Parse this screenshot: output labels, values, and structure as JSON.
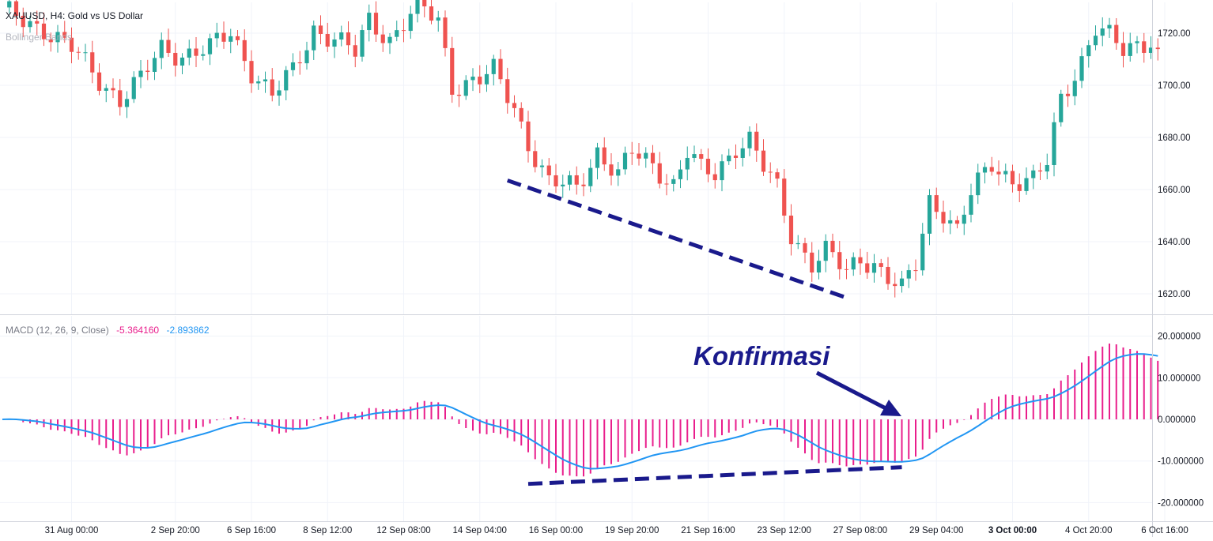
{
  "header": {
    "symbol_title": "XAUUSD, H4: Gold vs US Dollar",
    "indicator": "Bollinger Bands"
  },
  "macd_legend": {
    "label": "MACD (12, 26, 9, Close)",
    "macd_value": "-5.364160",
    "signal_value": "-2.893862"
  },
  "annotation": {
    "text": "Konfirmasi"
  },
  "colors": {
    "up": "#26a69a",
    "down": "#ef5350",
    "histogram": "#e91e8c",
    "signal_line": "#2196f3",
    "divergence_line": "#1a1a8c",
    "grid": "#f0f3fa",
    "axis_text": "#131722"
  },
  "chart_data": [
    {
      "type": "candlestick",
      "title": "XAUUSD, H4: Gold vs US Dollar",
      "y_ticks": [
        1620,
        1640,
        1660,
        1680,
        1700,
        1720
      ],
      "y_tick_labels": [
        "1620.00",
        "1640.00",
        "1660.00",
        "1680.00",
        "1700.00",
        "1720.00"
      ],
      "ylim": [
        1608,
        1737
      ],
      "x_ticks": [
        {
          "i": 10,
          "label": "31 Aug 00:00",
          "bold": false
        },
        {
          "i": 25,
          "label": "2 Sep 20:00",
          "bold": false
        },
        {
          "i": 36,
          "label": "6 Sep 16:00",
          "bold": false
        },
        {
          "i": 47,
          "label": "8 Sep 12:00",
          "bold": false
        },
        {
          "i": 58,
          "label": "12 Sep 08:00",
          "bold": false
        },
        {
          "i": 69,
          "label": "14 Sep 04:00",
          "bold": false
        },
        {
          "i": 80,
          "label": "16 Sep 00:00",
          "bold": false
        },
        {
          "i": 91,
          "label": "19 Sep 20:00",
          "bold": false
        },
        {
          "i": 102,
          "label": "21 Sep 16:00",
          "bold": false
        },
        {
          "i": 113,
          "label": "23 Sep 12:00",
          "bold": false
        },
        {
          "i": 124,
          "label": "27 Sep 08:00",
          "bold": false
        },
        {
          "i": 135,
          "label": "29 Sep 04:00",
          "bold": false
        },
        {
          "i": 146,
          "label": "3 Oct 00:00",
          "bold": true
        },
        {
          "i": 157,
          "label": "4 Oct 20:00",
          "bold": false
        },
        {
          "i": 168,
          "label": "6 Oct 16:00",
          "bold": false
        }
      ],
      "trendline": {
        "from": [
          73,
          1663.5
        ],
        "to": [
          122,
          1618.5
        ]
      }
    },
    {
      "type": "macd",
      "label": "MACD (12, 26, 9, Close)",
      "y_ticks": [
        -20,
        -10,
        0,
        10,
        20
      ],
      "y_tick_labels": [
        "-20.000000",
        "-10.000000",
        "0.000000",
        "10.000000",
        "20.000000"
      ],
      "ylim": [
        -25,
        22
      ],
      "trendline": {
        "from": [
          76,
          -15.5
        ],
        "to": [
          130,
          -11.5
        ]
      }
    }
  ]
}
